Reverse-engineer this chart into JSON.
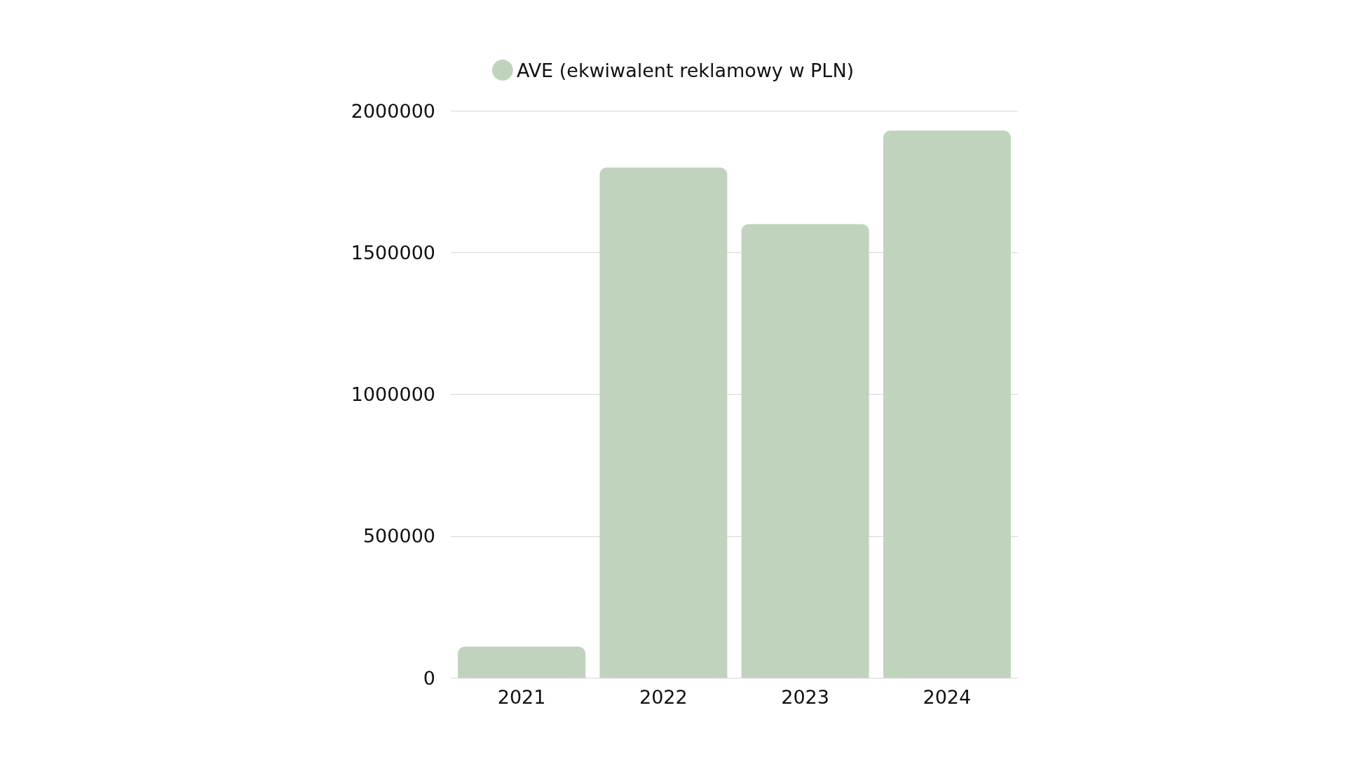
{
  "chart_data": {
    "type": "bar",
    "categories": [
      "2021",
      "2022",
      "2023",
      "2024"
    ],
    "series": [
      {
        "name": "AVE (ekwiwalent reklamowy w PLN)",
        "color": "#c0d4bd",
        "values": [
          110000,
          1800000,
          1600000,
          1930000
        ]
      }
    ],
    "ylim": [
      0,
      2000000
    ],
    "yticks": [
      0,
      500000,
      1000000,
      1500000,
      2000000
    ],
    "grid": "y",
    "legend": "top"
  }
}
